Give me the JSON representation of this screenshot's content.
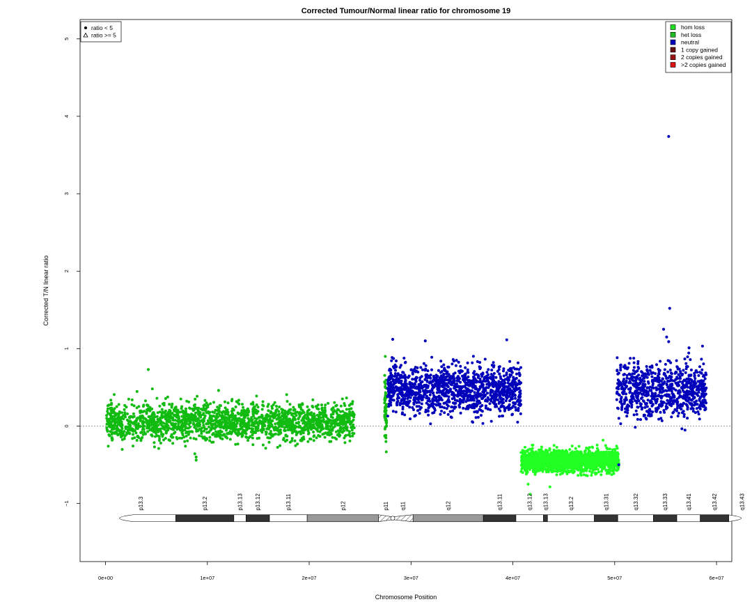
{
  "chart_data": {
    "type": "scatter",
    "title": "Corrected Tumour/Normal linear ratio for chromosome  19",
    "xlabel": "Chromosome Position",
    "ylabel": "Corrected T/N linear ratio",
    "xlim": [
      -2500000,
      61500000
    ],
    "ylim": [
      -1.75,
      5.25
    ],
    "x_ticks": [
      {
        "value": 0,
        "label": "0e+00"
      },
      {
        "value": 10000000,
        "label": "1e+07"
      },
      {
        "value": 20000000,
        "label": "2e+07"
      },
      {
        "value": 30000000,
        "label": "3e+07"
      },
      {
        "value": 40000000,
        "label": "4e+07"
      },
      {
        "value": 50000000,
        "label": "5e+07"
      },
      {
        "value": 60000000,
        "label": "6e+07"
      }
    ],
    "y_ticks": [
      {
        "value": -1,
        "label": "−1"
      },
      {
        "value": 0,
        "label": "0"
      },
      {
        "value": 1,
        "label": "1"
      },
      {
        "value": 2,
        "label": "2"
      },
      {
        "value": 3,
        "label": "3"
      },
      {
        "value": 4,
        "label": "4"
      },
      {
        "value": 5,
        "label": "5"
      }
    ],
    "reference_line": 0,
    "shape_legend": {
      "position": "top-left",
      "entries": [
        {
          "symbol": "circle",
          "label": "ratio < 5"
        },
        {
          "symbol": "triangle",
          "label": "ratio >= 5"
        }
      ]
    },
    "color_legend": {
      "position": "top-right",
      "entries": [
        {
          "label": "hom loss",
          "color": "#22dd22"
        },
        {
          "label": "het loss",
          "color": "#22bb22"
        },
        {
          "label": "neutral",
          "color": "#0000bb"
        },
        {
          "label": "1 copy gained",
          "color": "#661111"
        },
        {
          "label": "2 copies gained",
          "color": "#991111"
        },
        {
          "label": ">2 copies gained",
          "color": "#dd1111"
        }
      ]
    },
    "series": [
      {
        "state": "het loss",
        "color": "#11bb11",
        "x_range": [
          100000,
          24500000
        ],
        "mean": 0.05,
        "sd": 0.12,
        "count": 1900
      },
      {
        "state": "het loss",
        "color": "#11bb11",
        "x_range": [
          27400000,
          27600000
        ],
        "mean": 0.2,
        "sd": 0.22,
        "count": 60
      },
      {
        "state": "neutral",
        "color": "#0000bb",
        "x_range": [
          27700000,
          40800000
        ],
        "mean": 0.47,
        "sd": 0.15,
        "count": 1300
      },
      {
        "state": "hom loss",
        "color": "#22ff22",
        "x_range": [
          40800000,
          50400000
        ],
        "mean": -0.45,
        "sd": 0.07,
        "count": 1700
      },
      {
        "state": "neutral",
        "color": "#0000bb",
        "x_range": [
          50200000,
          59000000
        ],
        "mean": 0.47,
        "sd": 0.17,
        "count": 800
      }
    ],
    "outliers": [
      {
        "x": 4200000,
        "y": 0.73,
        "color": "#11bb11"
      },
      {
        "x": 8900000,
        "y": -0.4,
        "color": "#11bb11"
      },
      {
        "x": 8900000,
        "y": -0.44,
        "color": "#11bb11"
      },
      {
        "x": 11100000,
        "y": 0.46,
        "color": "#11bb11"
      },
      {
        "x": 28200000,
        "y": 1.12,
        "color": "#0000bb"
      },
      {
        "x": 31400000,
        "y": 1.1,
        "color": "#0000bb"
      },
      {
        "x": 41500000,
        "y": -0.75,
        "color": "#22ff22"
      },
      {
        "x": 41700000,
        "y": -0.88,
        "color": "#22ff22"
      },
      {
        "x": 55300000,
        "y": 3.74,
        "color": "#0000bb"
      },
      {
        "x": 55400000,
        "y": 1.52,
        "color": "#0000bb"
      },
      {
        "x": 54800000,
        "y": 1.25,
        "color": "#0000bb"
      },
      {
        "x": 55100000,
        "y": 1.15,
        "color": "#0000bb"
      },
      {
        "x": 55300000,
        "y": 1.09,
        "color": "#0000bb"
      },
      {
        "x": 57300000,
        "y": 1.01,
        "color": "#0000bb"
      },
      {
        "x": 50400000,
        "y": -0.5,
        "color": "#0000bb"
      }
    ],
    "ideogram": {
      "y": -1.19,
      "label_y": -1.0,
      "centromere_x": 28200000,
      "bands": [
        {
          "name": "p13.3",
          "start": 0,
          "end": 6900000,
          "stain": "gneg"
        },
        {
          "name": "p13.2",
          "start": 6900000,
          "end": 12600000,
          "stain": "gpos75"
        },
        {
          "name": "p13.13",
          "start": 12600000,
          "end": 13800000,
          "stain": "gneg"
        },
        {
          "name": "p13.12",
          "start": 13800000,
          "end": 16100000,
          "stain": "gpos75"
        },
        {
          "name": "p13.11",
          "start": 16100000,
          "end": 19800000,
          "stain": "gneg"
        },
        {
          "name": "p12",
          "start": 19800000,
          "end": 26800000,
          "stain": "gvar"
        },
        {
          "name": "p11",
          "start": 26800000,
          "end": 28200000,
          "stain": "acen"
        },
        {
          "name": "q11",
          "start": 28200000,
          "end": 30200000,
          "stain": "acen"
        },
        {
          "name": "q12",
          "start": 30200000,
          "end": 37100000,
          "stain": "gvar"
        },
        {
          "name": "q13.11",
          "start": 37100000,
          "end": 40300000,
          "stain": "gpos75"
        },
        {
          "name": "q13.12",
          "start": 40300000,
          "end": 43000000,
          "stain": "gneg"
        },
        {
          "name": "q13.13",
          "start": 43000000,
          "end": 43400000,
          "stain": "gpos75"
        },
        {
          "name": "q13.2",
          "start": 43400000,
          "end": 48000000,
          "stain": "gneg"
        },
        {
          "name": "q13.31",
          "start": 48000000,
          "end": 50300000,
          "stain": "gpos75"
        },
        {
          "name": "q13.32",
          "start": 50300000,
          "end": 53800000,
          "stain": "gneg"
        },
        {
          "name": "q13.33",
          "start": 53800000,
          "end": 56100000,
          "stain": "gpos75"
        },
        {
          "name": "q13.41",
          "start": 56100000,
          "end": 58400000,
          "stain": "gneg"
        },
        {
          "name": "q13.42",
          "start": 58400000,
          "end": 61200000,
          "stain": "gpos75"
        },
        {
          "name": "q13.43",
          "start": 61200000,
          "end": 63800000,
          "stain": "gneg"
        }
      ]
    }
  }
}
